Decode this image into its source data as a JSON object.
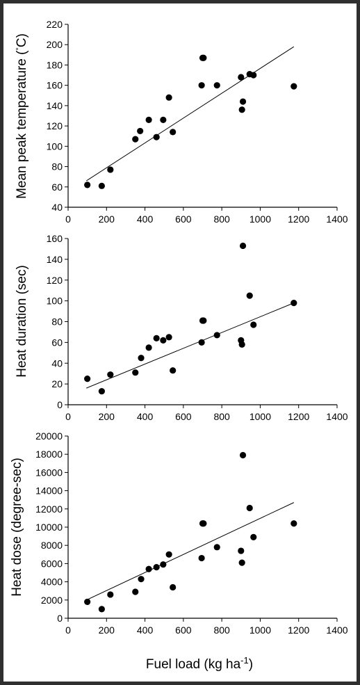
{
  "chart_data": [
    {
      "type": "scatter",
      "ylabel_main": "Mean peak temperature (",
      "ylabel_deg": "°",
      "ylabel_unit": "C)",
      "xlim": [
        0,
        1400
      ],
      "ylim": [
        40,
        220
      ],
      "xticks": [
        "0",
        "200",
        "400",
        "600",
        "800",
        "1000",
        "1200",
        "1400"
      ],
      "yticks": [
        "40",
        "60",
        "80",
        "100",
        "120",
        "140",
        "160",
        "180",
        "200",
        "220"
      ],
      "x": [
        100,
        175,
        220,
        350,
        375,
        420,
        460,
        495,
        525,
        545,
        695,
        700,
        705,
        775,
        900,
        905,
        910,
        945,
        965,
        1175
      ],
      "y": [
        62,
        61,
        77,
        107,
        115,
        126,
        109,
        126,
        148,
        114,
        160,
        187,
        187,
        160,
        168,
        136,
        144,
        171,
        170,
        159
      ],
      "trend": {
        "x": [
          95,
          1175
        ],
        "y": [
          66,
          198
        ]
      }
    },
    {
      "type": "scatter",
      "ylabel": "Heat duration (sec)",
      "xlim": [
        0,
        1400
      ],
      "ylim": [
        0,
        160
      ],
      "xticks": [
        "0",
        "200",
        "400",
        "600",
        "800",
        "1000",
        "1200",
        "1400"
      ],
      "yticks": [
        "0",
        "20",
        "40",
        "60",
        "80",
        "100",
        "120",
        "140",
        "160"
      ],
      "x": [
        100,
        175,
        220,
        350,
        380,
        420,
        460,
        495,
        525,
        545,
        695,
        700,
        705,
        775,
        900,
        905,
        910,
        945,
        965,
        1175
      ],
      "y": [
        25,
        13,
        29,
        31,
        45,
        55,
        64,
        62,
        65,
        33,
        60,
        81,
        81,
        67,
        62,
        58,
        153,
        105,
        77,
        98
      ],
      "trend": {
        "x": [
          95,
          1175
        ],
        "y": [
          16,
          98
        ]
      }
    },
    {
      "type": "scatter",
      "ylabel": "Heat dose (degree-sec)",
      "xlabel_main": "Fuel load (kg ha",
      "xlabel_sup": "-1",
      "xlabel_close": ")",
      "xlim": [
        0,
        1400
      ],
      "ylim": [
        0,
        20000
      ],
      "xticks": [
        "0",
        "200",
        "400",
        "600",
        "800",
        "1000",
        "1200",
        "1400"
      ],
      "yticks": [
        "0",
        "2000",
        "4000",
        "6000",
        "8000",
        "10000",
        "12000",
        "14000",
        "16000",
        "18000",
        "20000"
      ],
      "x": [
        100,
        175,
        220,
        350,
        380,
        420,
        460,
        495,
        525,
        545,
        695,
        700,
        705,
        775,
        900,
        905,
        910,
        945,
        965,
        1175
      ],
      "y": [
        1800,
        1000,
        2600,
        2900,
        4300,
        5400,
        5600,
        5900,
        7000,
        3400,
        6600,
        10400,
        10400,
        7800,
        7400,
        6100,
        17900,
        12100,
        8900,
        10400
      ],
      "trend": {
        "x": [
          95,
          1175
        ],
        "y": [
          2000,
          12700
        ]
      }
    }
  ]
}
